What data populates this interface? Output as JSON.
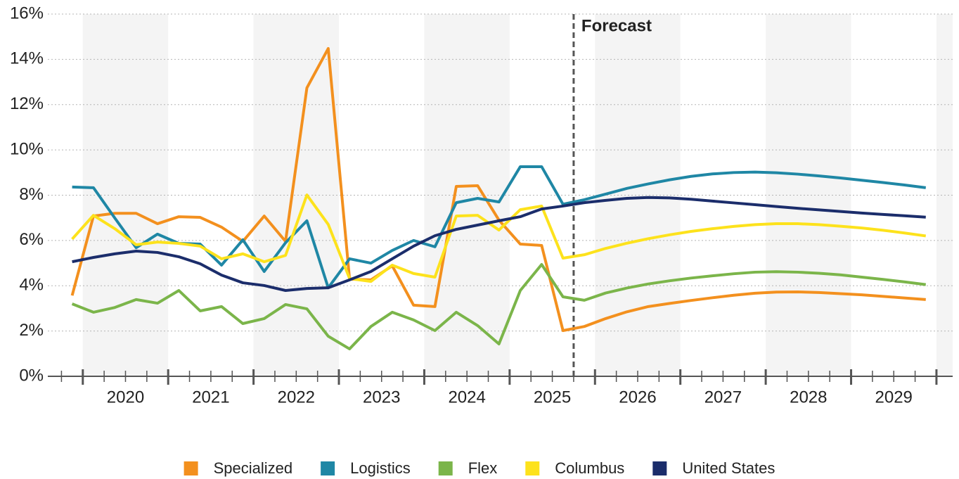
{
  "chart_data": {
    "type": "line",
    "annotation": {
      "text": "Forecast",
      "x": 2025.75
    },
    "x": [
      2019.875,
      2020.125,
      2020.375,
      2020.625,
      2020.875,
      2021.125,
      2021.375,
      2021.625,
      2021.875,
      2022.125,
      2022.375,
      2022.625,
      2022.875,
      2023.125,
      2023.375,
      2023.625,
      2023.875,
      2024.125,
      2024.375,
      2024.625,
      2024.875,
      2025.125,
      2025.375,
      2025.625,
      2025.875,
      2026.125,
      2026.375,
      2026.625,
      2026.875,
      2027.125,
      2027.375,
      2027.625,
      2027.875,
      2028.125,
      2028.375,
      2028.625,
      2028.875,
      2029.125,
      2029.375,
      2029.625,
      2029.875
    ],
    "series": [
      {
        "name": "Specialized",
        "color": "#f3901e",
        "values": [
          3.57,
          7.08,
          7.2,
          7.2,
          6.74,
          7.05,
          7.02,
          6.59,
          5.96,
          7.08,
          5.96,
          12.74,
          14.48,
          4.29,
          4.26,
          4.88,
          3.14,
          3.08,
          8.39,
          8.42,
          6.9,
          5.84,
          5.78,
          2.02,
          2.2,
          2.55,
          2.85,
          3.08,
          3.22,
          3.35,
          3.47,
          3.58,
          3.67,
          3.72,
          3.73,
          3.7,
          3.65,
          3.6,
          3.53,
          3.46,
          3.39
        ]
      },
      {
        "name": "Logistics",
        "color": "#1f87a5",
        "values": [
          8.36,
          8.33,
          6.99,
          5.68,
          6.28,
          5.87,
          5.84,
          4.91,
          6.03,
          4.63,
          5.9,
          6.87,
          3.91,
          5.19,
          5.0,
          5.56,
          6.0,
          5.72,
          7.67,
          7.86,
          7.7,
          9.26,
          9.26,
          7.6,
          7.8,
          8.05,
          8.3,
          8.5,
          8.68,
          8.83,
          8.94,
          9.0,
          9.02,
          8.99,
          8.93,
          8.85,
          8.76,
          8.66,
          8.56,
          8.45,
          8.33
        ]
      },
      {
        "name": "Flex",
        "color": "#7bb54a",
        "values": [
          3.2,
          2.83,
          3.04,
          3.39,
          3.23,
          3.79,
          2.89,
          3.08,
          2.33,
          2.55,
          3.17,
          2.98,
          1.77,
          1.21,
          2.2,
          2.83,
          2.49,
          2.02,
          2.83,
          2.24,
          1.43,
          3.79,
          4.94,
          3.51,
          3.36,
          3.68,
          3.9,
          4.08,
          4.22,
          4.34,
          4.44,
          4.53,
          4.6,
          4.62,
          4.6,
          4.55,
          4.48,
          4.38,
          4.28,
          4.17,
          4.05
        ]
      },
      {
        "name": "Columbus",
        "color": "#fde21c",
        "values": [
          6.06,
          7.11,
          6.52,
          5.81,
          5.93,
          5.87,
          5.75,
          5.19,
          5.41,
          5.06,
          5.34,
          8.01,
          6.71,
          4.32,
          4.19,
          4.91,
          4.54,
          4.38,
          7.08,
          7.11,
          6.46,
          7.36,
          7.52,
          5.22,
          5.37,
          5.65,
          5.88,
          6.08,
          6.25,
          6.4,
          6.52,
          6.62,
          6.7,
          6.74,
          6.74,
          6.7,
          6.63,
          6.55,
          6.45,
          6.33,
          6.2
        ]
      },
      {
        "name": "United States",
        "color": "#1b2d6b",
        "values": [
          5.06,
          5.25,
          5.41,
          5.53,
          5.47,
          5.28,
          4.97,
          4.47,
          4.13,
          4.01,
          3.79,
          3.88,
          3.91,
          4.26,
          4.63,
          5.19,
          5.75,
          6.21,
          6.49,
          6.68,
          6.87,
          7.05,
          7.39,
          7.52,
          7.67,
          7.77,
          7.86,
          7.9,
          7.88,
          7.82,
          7.74,
          7.66,
          7.58,
          7.5,
          7.42,
          7.35,
          7.28,
          7.21,
          7.15,
          7.09,
          7.03
        ]
      }
    ],
    "xlim": [
      2019.59,
      2030.19
    ],
    "xticks": [
      {
        "value": 2020.5,
        "label": "2020"
      },
      {
        "value": 2021.5,
        "label": "2021"
      },
      {
        "value": 2022.5,
        "label": "2022"
      },
      {
        "value": 2023.5,
        "label": "2023"
      },
      {
        "value": 2024.5,
        "label": "2024"
      },
      {
        "value": 2025.5,
        "label": "2025"
      },
      {
        "value": 2026.5,
        "label": "2026"
      },
      {
        "value": 2027.5,
        "label": "2027"
      },
      {
        "value": 2028.5,
        "label": "2028"
      },
      {
        "value": 2029.5,
        "label": "2029"
      }
    ],
    "ylim": [
      0,
      16
    ],
    "yticks": [
      {
        "value": 0,
        "label": "0%"
      },
      {
        "value": 2,
        "label": "2%"
      },
      {
        "value": 4,
        "label": "4%"
      },
      {
        "value": 6,
        "label": "6%"
      },
      {
        "value": 8,
        "label": "8%"
      },
      {
        "value": 10,
        "label": "10%"
      },
      {
        "value": 12,
        "label": "12%"
      },
      {
        "value": 14,
        "label": "14%"
      },
      {
        "value": 16,
        "label": "16%"
      }
    ],
    "grid": true,
    "legend": "bottom"
  }
}
